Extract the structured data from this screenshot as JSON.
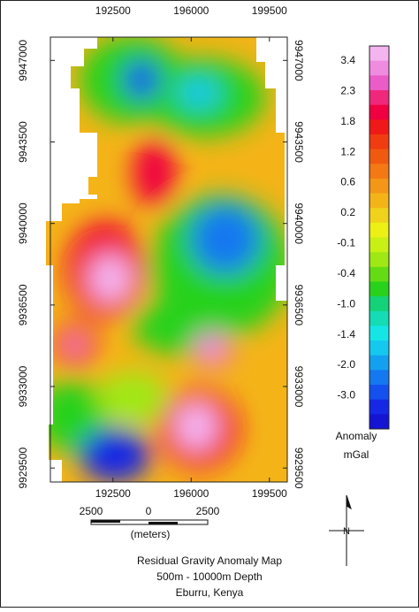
{
  "map": {
    "xticks": [
      192500,
      196000,
      199500
    ],
    "xlim": [
      189700,
      200300
    ],
    "yticks": [
      9947000,
      9943500,
      9940000,
      9936500,
      9933000,
      9929500
    ],
    "ylim": [
      9928900,
      9948000
    ]
  },
  "colorbar": {
    "ticks": [
      "3.4",
      "2.3",
      "1.8",
      "1.2",
      "0.6",
      "0.2",
      "-0.1",
      "-0.4",
      "-1.0",
      "-1.4",
      "-2.0",
      "-3.0"
    ],
    "title": "Anomaly",
    "unit": "mGal",
    "colors": [
      "#f4b4f0",
      "#f08ce0",
      "#ec5cc8",
      "#f0287c",
      "#f00040",
      "#f01818",
      "#f03c10",
      "#f05a10",
      "#f47814",
      "#f49618",
      "#f4b418",
      "#f0d21c",
      "#ecf014",
      "#c8f014",
      "#a0e814",
      "#64dc14",
      "#28d21c",
      "#14d278",
      "#14dcb4",
      "#14e6e6",
      "#14c8f0",
      "#14a0f0",
      "#1478f0",
      "#1450f0",
      "#1428e6",
      "#1414d2"
    ]
  },
  "scale_bar": {
    "left": "2500",
    "center": "0",
    "right": "2500",
    "unit": "(meters)"
  },
  "north": "N",
  "caption": [
    "Residual Gravity Anomaly Map",
    "500m - 10000m Depth",
    "Eburru, Kenya"
  ]
}
